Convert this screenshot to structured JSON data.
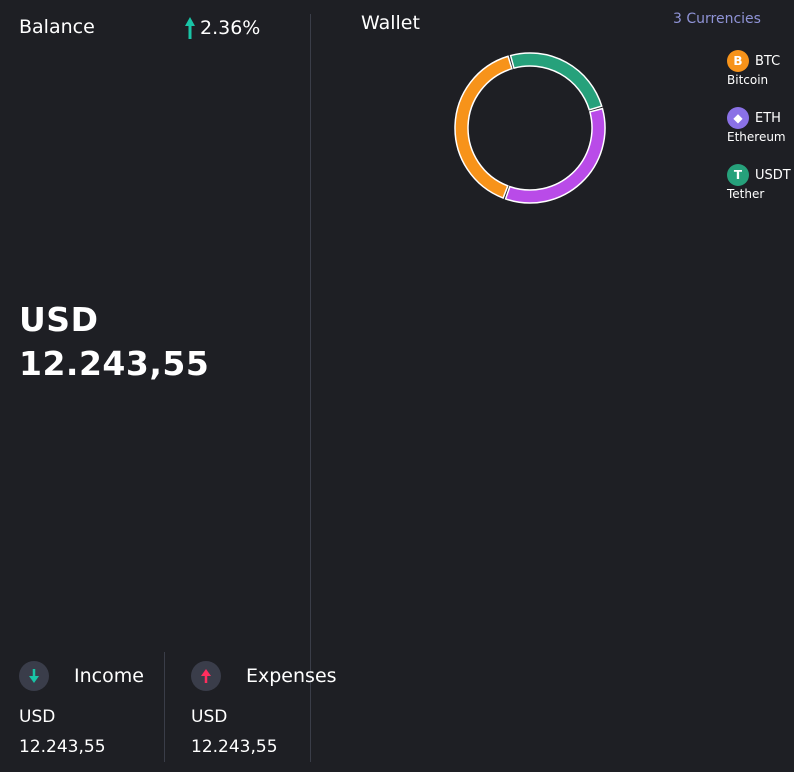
{
  "balance": {
    "title": "Balance",
    "change": "2.36%",
    "currency": "USD",
    "amount": "12.243,55"
  },
  "income": {
    "label": "Income",
    "currency": "USD",
    "amount": "12.243,55"
  },
  "expenses": {
    "label": "Expenses",
    "currency": "USD",
    "amount": "12.243,55"
  },
  "wallet": {
    "title": "Wallet",
    "currencies_link": "3 Currencies",
    "currencies": [
      {
        "symbol": "BTC",
        "name": "Bitcoin",
        "icon": "bitcoin-icon",
        "icon_glyph": "B",
        "color": "#f7931a"
      },
      {
        "symbol": "ETH",
        "name": "Ethereum",
        "icon": "ethereum-icon",
        "icon_glyph": "◆",
        "color": "#8a71e6"
      },
      {
        "symbol": "USDT",
        "name": "Tether",
        "icon": "tether-icon",
        "icon_glyph": "T",
        "color": "#26a17b"
      }
    ]
  },
  "colors": {
    "background": "#1e1f24",
    "up": "#19c4a6",
    "down": "#ff2e5e",
    "btc": "#f7931a",
    "eth": "#b94be8",
    "usdt": "#26a17b"
  },
  "chart_data": {
    "type": "pie",
    "style": "donut",
    "categories": [
      "BTC",
      "USDT",
      "ETH"
    ],
    "values": [
      40,
      25,
      35
    ],
    "colors": [
      "#f7931a",
      "#26a17b",
      "#b94be8"
    ]
  }
}
